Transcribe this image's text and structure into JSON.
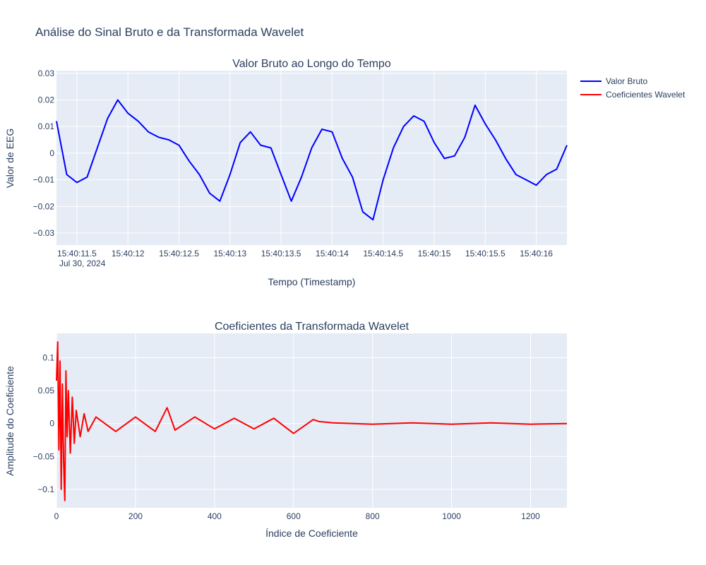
{
  "title": "Análise do Sinal Bruto e da Transformada Wavelet",
  "legend": [
    {
      "label": "Valor Bruto",
      "color": "#0000ff"
    },
    {
      "label": "Coeficientes Wavelet",
      "color": "#ff0000"
    }
  ],
  "chart_data": [
    {
      "type": "line",
      "title": "Valor Bruto ao Longo do Tempo",
      "xlabel": "Tempo (Timestamp)",
      "ylabel": "Valor de EEG",
      "x_start": "15:40:11.3",
      "x_end": "15:40:16.3",
      "xlim_seconds_of_minute": [
        11.3,
        16.3
      ],
      "ylim": [
        -0.0345,
        0.031
      ],
      "x_ticks": [
        "15:40:11.5",
        "15:40:12",
        "15:40:12.5",
        "15:40:13",
        "15:40:13.5",
        "15:40:14",
        "15:40:14.5",
        "15:40:15",
        "15:40:15.5",
        "15:40:16"
      ],
      "x_tick_date": "Jul 30, 2024",
      "y_ticks": [
        "0.03",
        "0.02",
        "0.01",
        "0",
        "−0.01",
        "−0.02",
        "−0.03"
      ],
      "y_tick_values": [
        0.03,
        0.02,
        0.01,
        0,
        -0.01,
        -0.02,
        -0.03
      ],
      "grid": true,
      "legend_position": "top-right",
      "series": [
        {
          "name": "Valor Bruto",
          "color": "#0000ff",
          "x_seconds_of_minute": [
            11.3,
            11.4,
            11.5,
            11.6,
            11.7,
            11.8,
            11.9,
            12.0,
            12.1,
            12.2,
            12.3,
            12.4,
            12.5,
            12.6,
            12.7,
            12.8,
            12.9,
            13.0,
            13.1,
            13.2,
            13.3,
            13.4,
            13.5,
            13.6,
            13.7,
            13.8,
            13.9,
            14.0,
            14.1,
            14.2,
            14.3,
            14.4,
            14.5,
            14.6,
            14.7,
            14.8,
            14.9,
            15.0,
            15.1,
            15.2,
            15.3,
            15.4,
            15.5,
            15.6,
            15.7,
            15.8,
            15.9,
            16.0,
            16.1,
            16.2,
            16.3
          ],
          "values": [
            0.012,
            -0.008,
            -0.011,
            -0.009,
            0.002,
            0.013,
            0.02,
            0.015,
            0.012,
            0.008,
            0.006,
            0.005,
            0.003,
            -0.003,
            -0.008,
            -0.015,
            -0.018,
            -0.008,
            0.004,
            0.008,
            0.003,
            0.002,
            -0.008,
            -0.018,
            -0.009,
            0.002,
            0.009,
            0.008,
            -0.002,
            -0.009,
            -0.022,
            -0.025,
            -0.01,
            0.002,
            0.01,
            0.014,
            0.012,
            0.004,
            -0.002,
            -0.001,
            0.006,
            0.018,
            0.011,
            0.005,
            -0.002,
            -0.008,
            -0.01,
            -0.012,
            -0.008,
            -0.006,
            0.003
          ]
        }
      ]
    },
    {
      "type": "line",
      "title": "Coeficientes da Transformada Wavelet",
      "xlabel": "Índice de Coeficiente",
      "ylabel": "Amplitude do Coeficiente",
      "xlim": [
        0,
        1292
      ],
      "ylim": [
        -0.128,
        0.137
      ],
      "x_ticks": [
        "0",
        "200",
        "400",
        "600",
        "800",
        "1000",
        "1200"
      ],
      "x_tick_values": [
        0,
        200,
        400,
        600,
        800,
        1000,
        1200
      ],
      "y_ticks": [
        "0.1",
        "0.05",
        "0",
        "−0.05",
        "−0.1"
      ],
      "y_tick_values": [
        0.1,
        0.05,
        0,
        -0.05,
        -0.1
      ],
      "grid": true,
      "series": [
        {
          "name": "Coeficientes Wavelet",
          "color": "#ff0000",
          "x": [
            0,
            3,
            6,
            9,
            12,
            15,
            18,
            21,
            24,
            27,
            30,
            35,
            40,
            45,
            50,
            60,
            70,
            80,
            100,
            150,
            200,
            250,
            280,
            300,
            350,
            400,
            450,
            500,
            550,
            600,
            650,
            665,
            700,
            800,
            900,
            1000,
            1100,
            1200,
            1292
          ],
          "values": [
            0.065,
            0.124,
            -0.04,
            0.095,
            -0.1,
            0.06,
            -0.058,
            -0.117,
            0.08,
            -0.02,
            0.05,
            -0.045,
            0.04,
            -0.03,
            0.02,
            -0.02,
            0.015,
            -0.012,
            0.01,
            -0.012,
            0.01,
            -0.012,
            0.024,
            -0.01,
            0.01,
            -0.008,
            0.008,
            -0.008,
            0.008,
            -0.015,
            0.006,
            0.003,
            0.001,
            -0.001,
            0.001,
            -0.001,
            0.001,
            -0.001,
            0.0
          ]
        }
      ]
    }
  ]
}
